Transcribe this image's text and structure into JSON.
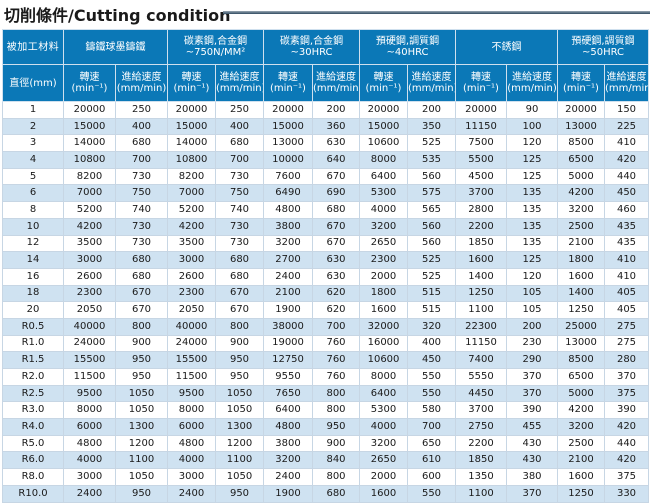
{
  "title": "切削條件/Cutting condition",
  "header": {
    "material_label": "被加工材料",
    "diameter_label": "直徑(mm)",
    "materials": [
      [
        "鑄鐵球墨鑄鐵"
      ],
      [
        "碳素鋼,合金鋼",
        "~750N/MM²"
      ],
      [
        "碳素鋼,合金鋼",
        "~30HRC"
      ],
      [
        "預硬鋼,調質鋼",
        "~40HRC"
      ],
      [
        "不銹鋼"
      ],
      [
        "預硬鋼,調質鋼",
        "~50HRC"
      ]
    ],
    "speed_label": [
      "轉速",
      "(min⁻¹)"
    ],
    "feed_label": [
      "進給速度",
      "(mm/min)"
    ]
  },
  "rows": [
    [
      "1",
      "20000",
      "250",
      "20000",
      "250",
      "20000",
      "200",
      "20000",
      "200",
      "20000",
      "90",
      "20000",
      "150"
    ],
    [
      "2",
      "15000",
      "400",
      "15000",
      "400",
      "15000",
      "360",
      "15000",
      "350",
      "11150",
      "100",
      "13000",
      "225"
    ],
    [
      "3",
      "14000",
      "680",
      "14000",
      "680",
      "13000",
      "630",
      "10600",
      "525",
      "7500",
      "120",
      "8500",
      "410"
    ],
    [
      "4",
      "10800",
      "700",
      "10800",
      "700",
      "10000",
      "640",
      "8000",
      "535",
      "5500",
      "125",
      "6500",
      "420"
    ],
    [
      "5",
      "8200",
      "730",
      "8200",
      "730",
      "7600",
      "670",
      "6400",
      "560",
      "4500",
      "125",
      "5000",
      "440"
    ],
    [
      "6",
      "7000",
      "750",
      "7000",
      "750",
      "6490",
      "690",
      "5300",
      "575",
      "3700",
      "135",
      "4200",
      "450"
    ],
    [
      "8",
      "5200",
      "740",
      "5200",
      "740",
      "4800",
      "680",
      "4000",
      "565",
      "2800",
      "135",
      "3200",
      "460"
    ],
    [
      "10",
      "4200",
      "730",
      "4200",
      "730",
      "3800",
      "670",
      "3200",
      "560",
      "2200",
      "135",
      "2500",
      "435"
    ],
    [
      "12",
      "3500",
      "730",
      "3500",
      "730",
      "3200",
      "670",
      "2650",
      "560",
      "1850",
      "135",
      "2100",
      "435"
    ],
    [
      "14",
      "3000",
      "680",
      "3000",
      "680",
      "2700",
      "630",
      "2300",
      "525",
      "1600",
      "125",
      "1800",
      "410"
    ],
    [
      "16",
      "2600",
      "680",
      "2600",
      "680",
      "2400",
      "630",
      "2000",
      "525",
      "1400",
      "120",
      "1600",
      "410"
    ],
    [
      "18",
      "2300",
      "670",
      "2300",
      "670",
      "2100",
      "620",
      "1800",
      "515",
      "1250",
      "105",
      "1400",
      "405"
    ],
    [
      "20",
      "2050",
      "670",
      "2050",
      "670",
      "1900",
      "620",
      "1600",
      "515",
      "1100",
      "105",
      "1250",
      "405"
    ],
    [
      "R0.5",
      "40000",
      "800",
      "40000",
      "800",
      "38000",
      "700",
      "32000",
      "320",
      "22300",
      "200",
      "25000",
      "275"
    ],
    [
      "R1.0",
      "24000",
      "900",
      "24000",
      "900",
      "19000",
      "760",
      "16000",
      "400",
      "11150",
      "230",
      "13000",
      "275"
    ],
    [
      "R1.5",
      "15500",
      "950",
      "15500",
      "950",
      "12750",
      "760",
      "10600",
      "450",
      "7400",
      "290",
      "8500",
      "280"
    ],
    [
      "R2.0",
      "11500",
      "950",
      "11500",
      "950",
      "9550",
      "760",
      "8000",
      "550",
      "5550",
      "370",
      "6500",
      "370"
    ],
    [
      "R2.5",
      "9500",
      "1050",
      "9500",
      "1050",
      "7650",
      "800",
      "6400",
      "550",
      "4450",
      "370",
      "5000",
      "375"
    ],
    [
      "R3.0",
      "8000",
      "1050",
      "8000",
      "1050",
      "6400",
      "800",
      "5300",
      "580",
      "3700",
      "390",
      "4200",
      "390"
    ],
    [
      "R4.0",
      "6000",
      "1300",
      "6000",
      "1300",
      "4800",
      "950",
      "4000",
      "700",
      "2750",
      "455",
      "3200",
      "420"
    ],
    [
      "R5.0",
      "4800",
      "1200",
      "4800",
      "1200",
      "3800",
      "900",
      "3200",
      "650",
      "2200",
      "430",
      "2500",
      "440"
    ],
    [
      "R6.0",
      "4000",
      "1100",
      "4000",
      "1100",
      "3200",
      "840",
      "2650",
      "610",
      "1850",
      "430",
      "2100",
      "420"
    ],
    [
      "R8.0",
      "3000",
      "1050",
      "3000",
      "1050",
      "2400",
      "800",
      "2000",
      "600",
      "1350",
      "380",
      "1600",
      "375"
    ],
    [
      "R10.0",
      "2400",
      "950",
      "2400",
      "950",
      "1900",
      "680",
      "1600",
      "550",
      "1100",
      "370",
      "1250",
      "330"
    ]
  ]
}
